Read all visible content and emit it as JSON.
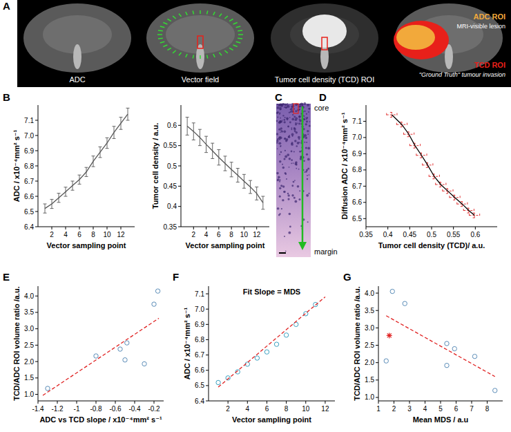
{
  "panel_a": {
    "letter": "A",
    "image_labels": [
      "ADC",
      "Vector field",
      "Tumor cell density (TCD) ROI"
    ],
    "roi_labels": [
      {
        "label": "ADC ROI",
        "note": "MRI-visible lesion",
        "color": "#f2a93b"
      },
      {
        "label": "TCD ROI",
        "note": "\"Ground Truth\" tumour invasion",
        "color": "#e8201a"
      }
    ]
  },
  "panel_c": {
    "letter": "C",
    "top_label": "core",
    "bottom_label": "margin"
  },
  "chart_data": [
    {
      "letter": "B",
      "type": "line",
      "x_label": "Vector sampling point",
      "y_label": "ADC / x10⁻⁴mm² s⁻¹",
      "xlim": [
        0,
        14
      ],
      "ylim": [
        6.4,
        7.2
      ],
      "xticks": [
        2,
        4,
        6,
        8,
        10,
        12
      ],
      "yticks": [
        6.4,
        6.5,
        6.6,
        6.7,
        6.8,
        6.9,
        {
          "value": 7,
          "label": "7.0"
        },
        7.1
      ],
      "series": [
        {
          "type": "line",
          "color": "#555555",
          "x": [
            1,
            2,
            3,
            4,
            5,
            6,
            7,
            8,
            9,
            10,
            11,
            12,
            13
          ],
          "values": [
            6.52,
            6.55,
            6.59,
            6.63,
            6.67,
            6.71,
            6.76,
            6.83,
            6.89,
            6.95,
            7.02,
            7.08,
            7.14
          ],
          "errors": [
            0.03,
            0.03,
            0.03,
            0.03,
            0.03,
            0.03,
            0.03,
            0.035,
            0.035,
            0.035,
            0.04,
            0.04,
            0.04
          ]
        }
      ]
    },
    {
      "type": "line",
      "x_label": "Vector sampling point",
      "y_label": "Tumor cell density / a.u.",
      "xlim": [
        0,
        14
      ],
      "ylim": [
        0.35,
        0.65
      ],
      "xticks": [
        2,
        4,
        6,
        8,
        10,
        12
      ],
      "yticks": [
        0.35,
        0.4,
        0.45,
        0.5,
        0.55,
        0.6
      ],
      "series": [
        {
          "type": "line",
          "color": "#555555",
          "x": [
            1,
            2,
            3,
            4,
            5,
            6,
            7,
            8,
            9,
            10,
            11,
            12,
            13
          ],
          "values": [
            0.598,
            0.585,
            0.57,
            0.553,
            0.537,
            0.521,
            0.506,
            0.491,
            0.477,
            0.462,
            0.448,
            0.432,
            0.409
          ],
          "errors": [
            0.022,
            0.021,
            0.02,
            0.02,
            0.019,
            0.019,
            0.018,
            0.018,
            0.017,
            0.017,
            0.016,
            0.016,
            0.016
          ]
        }
      ]
    },
    {
      "letter": "D",
      "type": "line",
      "x_label": "Tumor cell density (TCD)/ a.u.",
      "y_label": "Diffusion ADC / x10⁻⁴mm² s⁻¹",
      "xlim": [
        0.35,
        0.65
      ],
      "ylim": [
        6.45,
        7.2
      ],
      "xticks": [
        0.35,
        0.4,
        0.45,
        0.5,
        0.55,
        0.6
      ],
      "yticks": [
        6.5,
        6.6,
        6.7,
        6.8,
        6.9,
        {
          "value": 7,
          "label": "7.0"
        },
        7.1
      ],
      "series": [
        {
          "type": "line",
          "color": "#000000",
          "x": [
            0.598,
            0.585,
            0.57,
            0.553,
            0.537,
            0.521,
            0.506,
            0.491,
            0.477,
            0.462,
            0.448,
            0.432,
            0.409
          ],
          "values": [
            6.52,
            6.55,
            6.59,
            6.63,
            6.67,
            6.71,
            6.76,
            6.83,
            6.89,
            6.95,
            7.02,
            7.08,
            7.14
          ],
          "x_errors": [
            0.012,
            0.012,
            0.012,
            0.012,
            0.012,
            0.012,
            0.012,
            0.012,
            0.012,
            0.012,
            0.012,
            0.012,
            0.012
          ],
          "errors": [
            0.015,
            0.015,
            0.015,
            0.015,
            0.015,
            0.015,
            0.015,
            0.015,
            0.015,
            0.015,
            0.015,
            0.015,
            0.015
          ]
        }
      ]
    },
    {
      "letter": "E",
      "type": "scatter",
      "x_label": "ADC vs TCD slope / x10⁻⁴mm² s⁻¹",
      "y_label": "TCD/ADC ROI volume ratio /a.u.",
      "xlim": [
        -1.4,
        -0.1
      ],
      "ylim": [
        0.8,
        4.3
      ],
      "xticks": [
        -1.4,
        -1.2,
        -1,
        -0.8,
        -0.6,
        -0.4,
        -0.2
      ],
      "yticks": [
        {
          "value": 1,
          "label": "1.0"
        },
        1.5,
        {
          "value": 2,
          "label": "2.0"
        },
        2.5,
        {
          "value": 3,
          "label": "3.0"
        },
        3.5,
        {
          "value": 4,
          "label": "4.0"
        }
      ],
      "series": [
        {
          "type": "scatter",
          "marker": "circle",
          "color": "#5b8db8",
          "x": [
            -1.3,
            -0.8,
            -0.55,
            -0.5,
            -0.48,
            -0.3,
            -0.2,
            -0.16
          ],
          "values": [
            1.18,
            2.17,
            2.38,
            2.05,
            2.57,
            1.93,
            3.75,
            4.15
          ]
        },
        {
          "type": "line",
          "line_style": "dashed",
          "color": "#e02020",
          "x": [
            -1.35,
            -0.15
          ],
          "values": [
            0.97,
            3.32
          ]
        }
      ]
    },
    {
      "letter": "F",
      "type": "scatter",
      "title": "Fit Slope = MDS",
      "x_label": "Vector sampling point",
      "y_label": "ADC / x10⁻⁴mm² s⁻¹",
      "xlim": [
        0,
        13
      ],
      "ylim": [
        6.4,
        7.15
      ],
      "xticks": [
        2,
        4,
        6,
        8,
        10,
        12
      ],
      "yticks": [
        6.4,
        6.5,
        6.6,
        6.7,
        6.8,
        6.9,
        {
          "value": 7,
          "label": "7.0"
        },
        7.1
      ],
      "series": [
        {
          "type": "scatter",
          "marker": "circle",
          "color": "#3aa0c0",
          "x": [
            1,
            2,
            3,
            4,
            5,
            6,
            7,
            8,
            9,
            10,
            11
          ],
          "values": [
            6.52,
            6.55,
            6.59,
            6.64,
            6.68,
            6.72,
            6.77,
            6.83,
            6.9,
            6.97,
            7.03
          ]
        },
        {
          "type": "line",
          "line_style": "dashed",
          "color": "#e02020",
          "x": [
            1,
            12
          ],
          "values": [
            6.49,
            7.08
          ]
        }
      ]
    },
    {
      "letter": "G",
      "type": "scatter",
      "x_label": "Mean MDS / a.u",
      "y_label": "TCD/ADC ROI volume ratio /a.u.",
      "xlim": [
        1,
        9
      ],
      "ylim": [
        0.9,
        4.2
      ],
      "xticks": [
        1,
        2,
        3,
        4,
        5,
        6,
        7,
        8
      ],
      "yticks": [
        {
          "value": 1,
          "label": "1.0"
        },
        1.5,
        {
          "value": 2,
          "label": "2.0"
        },
        2.5,
        {
          "value": 3,
          "label": "3.0"
        },
        3.5,
        {
          "value": 4,
          "label": "4.0"
        }
      ],
      "series": [
        {
          "type": "scatter",
          "marker": "circle",
          "color": "#5b8db8",
          "x": [
            1.5,
            1.9,
            2.7,
            5.4,
            5.9,
            5.4,
            7.2,
            8.5
          ],
          "values": [
            2.05,
            4.05,
            3.7,
            2.55,
            2.4,
            1.92,
            2.18,
            1.2
          ]
        },
        {
          "type": "scatter",
          "marker": "asterisk",
          "color": "#e02020",
          "x": [
            1.7
          ],
          "values": [
            2.78
          ]
        },
        {
          "type": "line",
          "line_style": "dashed",
          "color": "#e02020",
          "x": [
            1.5,
            8.5
          ],
          "values": [
            3.35,
            1.6
          ]
        }
      ]
    }
  ]
}
